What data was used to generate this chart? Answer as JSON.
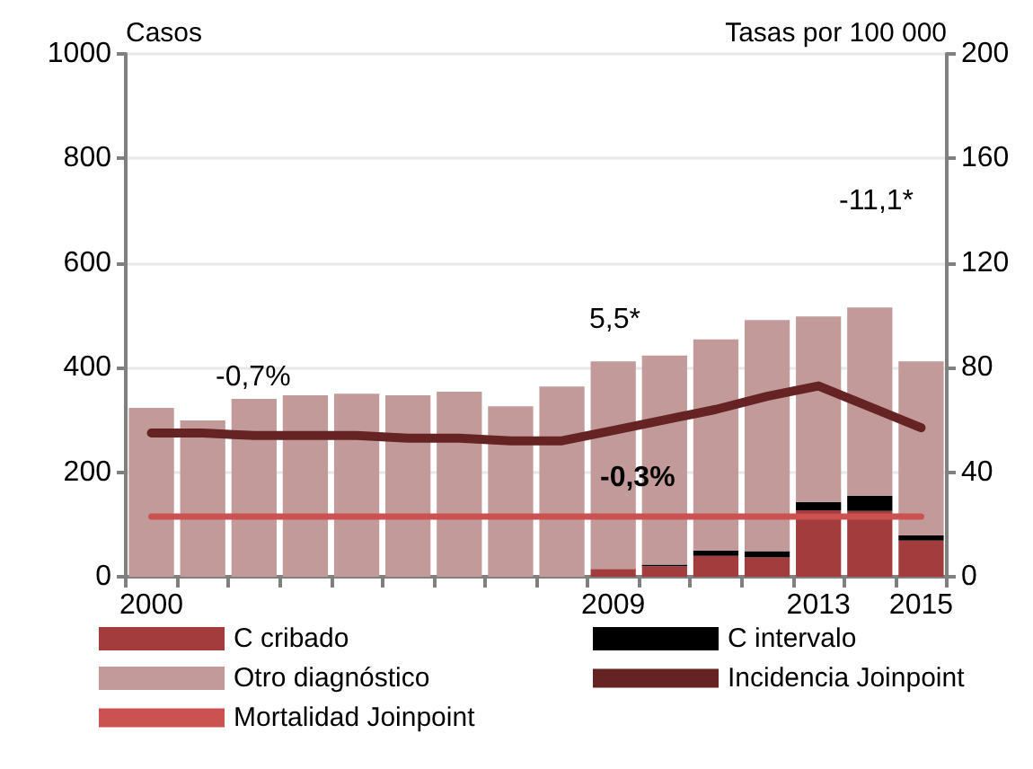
{
  "chart_data": {
    "type": "bar",
    "stacked": true,
    "ylabel": "Casos",
    "y2label": "Tasas por 100 000",
    "categories": [
      "2000",
      null,
      null,
      null,
      null,
      null,
      null,
      null,
      null,
      "2009",
      null,
      null,
      null,
      "2013",
      null,
      "2015"
    ],
    "series": [
      {
        "name": "C cribado",
        "color": "#a33d3d",
        "values": [
          0,
          0,
          0,
          0,
          0,
          0,
          0,
          0,
          0,
          15,
          20,
          40,
          37,
          127,
          126,
          69
        ]
      },
      {
        "name": "C intervalo",
        "color": "#000000",
        "values": [
          0,
          0,
          0,
          0,
          0,
          0,
          0,
          0,
          0,
          0,
          3,
          10,
          12,
          16,
          29,
          10
        ]
      },
      {
        "name": "Otro diagnóstico",
        "color": "#c29a9a",
        "values": [
          323,
          299,
          340,
          347,
          350,
          347,
          354,
          326,
          364,
          397,
          400,
          404,
          442,
          355,
          360,
          333
        ]
      },
      {
        "name": "Incidencia Joinpoint",
        "type": "line",
        "axis": "y2",
        "color": "#652323",
        "values": [
          55,
          55,
          54,
          54,
          54,
          53,
          53,
          52,
          52,
          56,
          60,
          64,
          69,
          73,
          65,
          57
        ]
      },
      {
        "name": "Mortalidad Joinpoint",
        "type": "line",
        "axis": "y2",
        "color": "#cc5252",
        "values": [
          23,
          23,
          23,
          23,
          23,
          23,
          23,
          23,
          23,
          23,
          23,
          23,
          23,
          23,
          23,
          23
        ]
      }
    ],
    "ylim": [
      0,
      1000
    ],
    "yticks": [
      0,
      200,
      400,
      600,
      800,
      1000
    ],
    "y2lim": [
      0,
      200
    ],
    "y2ticks": [
      0,
      40,
      80,
      120,
      160,
      200
    ],
    "grid": "y",
    "legend": "bottom",
    "marker": "none",
    "line_style": "solid",
    "annotations": [
      "-0,7%",
      "5,5*",
      "-11,1*",
      "-0,3%"
    ]
  }
}
